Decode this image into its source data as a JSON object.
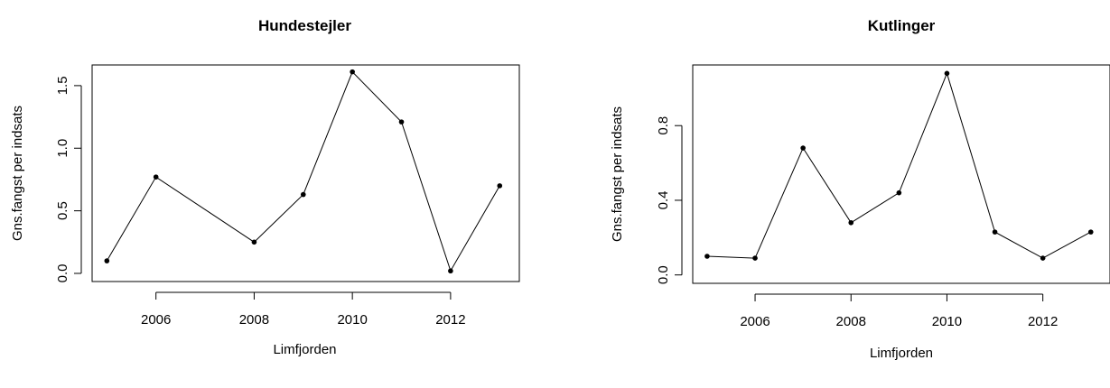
{
  "chart_data": [
    {
      "type": "line",
      "title": "Hundestejler",
      "xlabel": "Limfjorden",
      "ylabel": "Gns.fangst per indsats",
      "x": [
        2005,
        2006,
        2008,
        2009,
        2010,
        2011,
        2012,
        2013
      ],
      "series": [
        {
          "values": [
            0.1,
            0.77,
            0.25,
            0.63,
            1.61,
            1.21,
            0.02,
            0.7
          ]
        }
      ],
      "xticks": [
        2006,
        2008,
        2010,
        2012
      ],
      "xtick_labels": [
        "2006",
        "2008",
        "2010",
        "2012"
      ],
      "yticks": [
        0.0,
        0.5,
        1.0,
        1.5
      ],
      "ytick_labels": [
        "0.0",
        "0.5",
        "1.0",
        "1.5"
      ],
      "xlim": [
        2004.7,
        2013.4
      ],
      "ylim": [
        -0.065,
        1.665
      ],
      "grid": false,
      "marker": "filled-circle"
    },
    {
      "type": "line",
      "title": "Kutlinger",
      "xlabel": "Limfjorden",
      "ylabel": "Gns.fangst per indsats",
      "x": [
        2005,
        2006,
        2007,
        2008,
        2009,
        2010,
        2011,
        2012,
        2013
      ],
      "series": [
        {
          "values": [
            0.1,
            0.09,
            0.68,
            0.28,
            0.44,
            1.08,
            0.23,
            0.09,
            0.23
          ]
        }
      ],
      "xticks": [
        2006,
        2008,
        2010,
        2012
      ],
      "xtick_labels": [
        "2006",
        "2008",
        "2010",
        "2012"
      ],
      "yticks": [
        0.0,
        0.4,
        0.8
      ],
      "ytick_labels": [
        "0.0",
        "0.4",
        "0.8"
      ],
      "xlim": [
        2004.7,
        2013.4
      ],
      "ylim": [
        -0.045,
        1.125
      ],
      "grid": false,
      "marker": "filled-circle"
    }
  ]
}
